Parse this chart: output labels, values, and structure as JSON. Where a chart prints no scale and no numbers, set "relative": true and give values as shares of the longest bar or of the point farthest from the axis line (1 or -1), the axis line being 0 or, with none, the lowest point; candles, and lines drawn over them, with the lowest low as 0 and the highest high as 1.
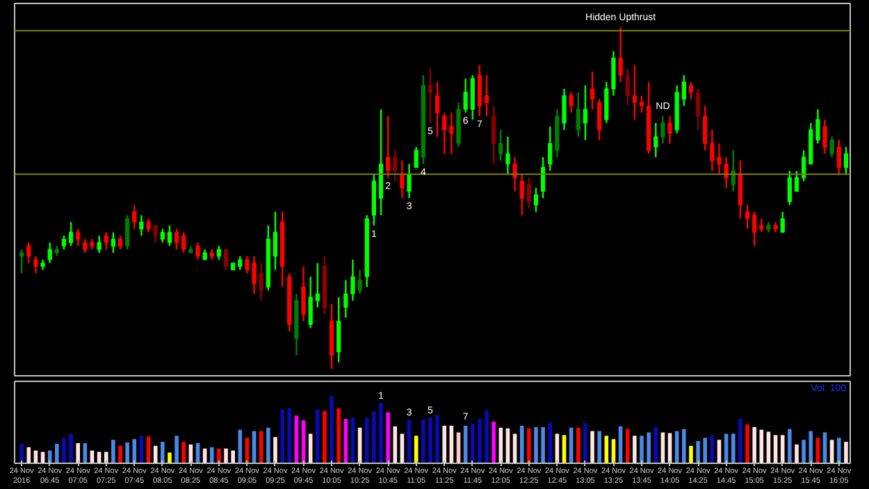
{
  "chart_data": [
    {
      "type": "candlestick",
      "relative": true,
      "tick_labels": false,
      "grid": false,
      "x": [
        "2016-11-24T06:25",
        "2016-11-24T06:30",
        "2016-11-24T06:35",
        "2016-11-24T06:40",
        "2016-11-24T06:45",
        "2016-11-24T06:50",
        "2016-11-24T06:55",
        "2016-11-24T07:00",
        "2016-11-24T07:05",
        "2016-11-24T07:10",
        "2016-11-24T07:15",
        "2016-11-24T07:20",
        "2016-11-24T07:25",
        "2016-11-24T07:30",
        "2016-11-24T07:35",
        "2016-11-24T07:40",
        "2016-11-24T07:45",
        "2016-11-24T07:50",
        "2016-11-24T07:55",
        "2016-11-24T08:00",
        "2016-11-24T08:05",
        "2016-11-24T08:10",
        "2016-11-24T08:15",
        "2016-11-24T08:20",
        "2016-11-24T08:25",
        "2016-11-24T08:30",
        "2016-11-24T08:35",
        "2016-11-24T08:40",
        "2016-11-24T08:45",
        "2016-11-24T08:50",
        "2016-11-24T08:55",
        "2016-11-24T09:00",
        "2016-11-24T09:05",
        "2016-11-24T09:10",
        "2016-11-24T09:15",
        "2016-11-24T09:20",
        "2016-11-24T09:25",
        "2016-11-24T09:30",
        "2016-11-24T09:35",
        "2016-11-24T09:40",
        "2016-11-24T09:45",
        "2016-11-24T09:50",
        "2016-11-24T09:55",
        "2016-11-24T10:00",
        "2016-11-24T10:05",
        "2016-11-24T10:10",
        "2016-11-24T10:15",
        "2016-11-24T10:20",
        "2016-11-24T10:25",
        "2016-11-24T10:30",
        "2016-11-24T10:35",
        "2016-11-24T10:40",
        "2016-11-24T10:45",
        "2016-11-24T10:50",
        "2016-11-24T10:55",
        "2016-11-24T11:00",
        "2016-11-24T11:05",
        "2016-11-24T11:10",
        "2016-11-24T11:15",
        "2016-11-24T11:20",
        "2016-11-24T11:25",
        "2016-11-24T11:30",
        "2016-11-24T11:35",
        "2016-11-24T11:40",
        "2016-11-24T11:45",
        "2016-11-24T11:50",
        "2016-11-24T11:55",
        "2016-11-24T12:00",
        "2016-11-24T12:05",
        "2016-11-24T12:10",
        "2016-11-24T12:15",
        "2016-11-24T12:20",
        "2016-11-24T12:25",
        "2016-11-24T12:30",
        "2016-11-24T12:35",
        "2016-11-24T12:40",
        "2016-11-24T12:45",
        "2016-11-24T12:50",
        "2016-11-24T12:55",
        "2016-11-24T13:00",
        "2016-11-24T13:05",
        "2016-11-24T13:10",
        "2016-11-24T13:15",
        "2016-11-24T13:20",
        "2016-11-24T13:25",
        "2016-11-24T13:30",
        "2016-11-24T13:35",
        "2016-11-24T13:40",
        "2016-11-24T13:45",
        "2016-11-24T13:50",
        "2016-11-24T13:55",
        "2016-11-24T14:00",
        "2016-11-24T14:05",
        "2016-11-24T14:10",
        "2016-11-24T14:15",
        "2016-11-24T14:20",
        "2016-11-24T14:25",
        "2016-11-24T14:30",
        "2016-11-24T14:35",
        "2016-11-24T14:40",
        "2016-11-24T14:45",
        "2016-11-24T14:50",
        "2016-11-24T14:55",
        "2016-11-24T15:00",
        "2016-11-24T15:05",
        "2016-11-24T15:10",
        "2016-11-24T15:15",
        "2016-11-24T15:20",
        "2016-11-24T15:25",
        "2016-11-24T15:30",
        "2016-11-24T15:35",
        "2016-11-24T15:40",
        "2016-11-24T15:45",
        "2016-11-24T15:50",
        "2016-11-24T15:55",
        "2016-11-24T16:00",
        "2016-11-24T16:05",
        "2016-11-24T16:10"
      ],
      "xlim": [
        "2016-11-24T06:20",
        "2016-11-24T16:13"
      ],
      "ohlc": [
        [
          0.33,
          0.35,
          0.28,
          0.34
        ],
        [
          0.36,
          0.37,
          0.31,
          0.33
        ],
        [
          0.32,
          0.33,
          0.28,
          0.3
        ],
        [
          0.3,
          0.32,
          0.29,
          0.31
        ],
        [
          0.32,
          0.37,
          0.31,
          0.35
        ],
        [
          0.34,
          0.36,
          0.33,
          0.35
        ],
        [
          0.36,
          0.39,
          0.35,
          0.38
        ],
        [
          0.37,
          0.43,
          0.36,
          0.4
        ],
        [
          0.4,
          0.41,
          0.36,
          0.38
        ],
        [
          0.37,
          0.38,
          0.34,
          0.35
        ],
        [
          0.37,
          0.38,
          0.35,
          0.36
        ],
        [
          0.35,
          0.39,
          0.34,
          0.37
        ],
        [
          0.39,
          0.4,
          0.35,
          0.37
        ],
        [
          0.36,
          0.4,
          0.34,
          0.38
        ],
        [
          0.38,
          0.39,
          0.35,
          0.36
        ],
        [
          0.36,
          0.45,
          0.35,
          0.44
        ],
        [
          0.46,
          0.48,
          0.41,
          0.43
        ],
        [
          0.41,
          0.45,
          0.39,
          0.43
        ],
        [
          0.43,
          0.44,
          0.4,
          0.41
        ],
        [
          0.42,
          0.42,
          0.37,
          0.39
        ],
        [
          0.38,
          0.41,
          0.37,
          0.4
        ],
        [
          0.37,
          0.42,
          0.36,
          0.4
        ],
        [
          0.4,
          0.41,
          0.35,
          0.37
        ],
        [
          0.39,
          0.4,
          0.34,
          0.35
        ],
        [
          0.34,
          0.36,
          0.34,
          0.35
        ],
        [
          0.36,
          0.37,
          0.32,
          0.33
        ],
        [
          0.32,
          0.35,
          0.32,
          0.34
        ],
        [
          0.34,
          0.35,
          0.32,
          0.33
        ],
        [
          0.33,
          0.36,
          0.32,
          0.35
        ],
        [
          0.35,
          0.35,
          0.29,
          0.3
        ],
        [
          0.29,
          0.31,
          0.29,
          0.31
        ],
        [
          0.3,
          0.33,
          0.29,
          0.32
        ],
        [
          0.32,
          0.33,
          0.28,
          0.29
        ],
        [
          0.31,
          0.33,
          0.22,
          0.25
        ],
        [
          0.28,
          0.31,
          0.2,
          0.23
        ],
        [
          0.24,
          0.42,
          0.23,
          0.38
        ],
        [
          0.33,
          0.46,
          0.29,
          0.4
        ],
        [
          0.43,
          0.46,
          0.24,
          0.3
        ],
        [
          0.27,
          0.28,
          0.11,
          0.13
        ],
        [
          0.09,
          0.22,
          0.04,
          0.2
        ],
        [
          0.24,
          0.3,
          0.14,
          0.16
        ],
        [
          0.13,
          0.27,
          0.12,
          0.21
        ],
        [
          0.2,
          0.31,
          0.18,
          0.22
        ],
        [
          0.3,
          0.33,
          0.16,
          0.18
        ],
        [
          0.14,
          0.19,
          0.0,
          0.04
        ],
        [
          0.05,
          0.21,
          0.02,
          0.14
        ],
        [
          0.18,
          0.26,
          0.15,
          0.22
        ],
        [
          0.22,
          0.32,
          0.2,
          0.27
        ],
        [
          0.23,
          0.29,
          0.22,
          0.26
        ],
        [
          0.27,
          0.45,
          0.24,
          0.44
        ],
        [
          0.45,
          0.57,
          0.42,
          0.55
        ],
        [
          0.5,
          0.76,
          0.45,
          0.6
        ],
        [
          0.62,
          0.74,
          0.56,
          0.58
        ],
        [
          0.62,
          0.64,
          0.55,
          0.58
        ],
        [
          0.57,
          0.61,
          0.5,
          0.53
        ],
        [
          0.52,
          0.6,
          0.5,
          0.57
        ],
        [
          0.59,
          0.65,
          0.59,
          0.64
        ],
        [
          0.62,
          0.86,
          0.6,
          0.83
        ],
        [
          0.83,
          0.88,
          0.72,
          0.81
        ],
        [
          0.8,
          0.84,
          0.68,
          0.75
        ],
        [
          0.74,
          0.75,
          0.63,
          0.7
        ],
        [
          0.71,
          0.75,
          0.63,
          0.69
        ],
        [
          0.66,
          0.78,
          0.65,
          0.76
        ],
        [
          0.76,
          0.85,
          0.75,
          0.81
        ],
        [
          0.76,
          0.86,
          0.73,
          0.85
        ],
        [
          0.86,
          0.89,
          0.74,
          0.77
        ],
        [
          0.8,
          0.86,
          0.74,
          0.78
        ],
        [
          0.74,
          0.77,
          0.6,
          0.66
        ],
        [
          0.63,
          0.7,
          0.61,
          0.66
        ],
        [
          0.6,
          0.68,
          0.57,
          0.63
        ],
        [
          0.6,
          0.62,
          0.52,
          0.56
        ],
        [
          0.55,
          0.57,
          0.45,
          0.5
        ],
        [
          0.54,
          0.56,
          0.47,
          0.49
        ],
        [
          0.48,
          0.53,
          0.46,
          0.51
        ],
        [
          0.52,
          0.62,
          0.5,
          0.59
        ],
        [
          0.6,
          0.71,
          0.58,
          0.66
        ],
        [
          0.64,
          0.76,
          0.62,
          0.74
        ],
        [
          0.72,
          0.82,
          0.7,
          0.8
        ],
        [
          0.8,
          0.81,
          0.75,
          0.77
        ],
        [
          0.7,
          0.81,
          0.68,
          0.76
        ],
        [
          0.72,
          0.83,
          0.67,
          0.76
        ],
        [
          0.82,
          0.87,
          0.76,
          0.79
        ],
        [
          0.78,
          0.79,
          0.67,
          0.7
        ],
        [
          0.73,
          0.84,
          0.72,
          0.82
        ],
        [
          0.82,
          0.93,
          0.8,
          0.91
        ],
        [
          0.91,
          1.0,
          0.84,
          0.86
        ],
        [
          0.86,
          0.88,
          0.77,
          0.8
        ],
        [
          0.8,
          0.89,
          0.73,
          0.78
        ],
        [
          0.78,
          0.8,
          0.75,
          0.77
        ],
        [
          0.77,
          0.84,
          0.63,
          0.64
        ],
        [
          0.65,
          0.72,
          0.62,
          0.68
        ],
        [
          0.68,
          0.74,
          0.66,
          0.72
        ],
        [
          0.72,
          0.74,
          0.66,
          0.69
        ],
        [
          0.7,
          0.83,
          0.69,
          0.81
        ],
        [
          0.79,
          0.86,
          0.77,
          0.84
        ],
        [
          0.83,
          0.84,
          0.79,
          0.81
        ],
        [
          0.81,
          0.82,
          0.7,
          0.74
        ],
        [
          0.74,
          0.77,
          0.64,
          0.66
        ],
        [
          0.66,
          0.7,
          0.58,
          0.61
        ],
        [
          0.62,
          0.66,
          0.57,
          0.6
        ],
        [
          0.6,
          0.62,
          0.53,
          0.56
        ],
        [
          0.54,
          0.64,
          0.52,
          0.58
        ],
        [
          0.57,
          0.61,
          0.44,
          0.48
        ],
        [
          0.46,
          0.48,
          0.41,
          0.44
        ],
        [
          0.45,
          0.46,
          0.36,
          0.4
        ],
        [
          0.42,
          0.44,
          0.4,
          0.41
        ],
        [
          0.41,
          0.43,
          0.4,
          0.42
        ],
        [
          0.42,
          0.43,
          0.4,
          0.41
        ],
        [
          0.4,
          0.46,
          0.4,
          0.44
        ],
        [
          0.49,
          0.58,
          0.48,
          0.56
        ],
        [
          0.52,
          0.58,
          0.52,
          0.56
        ],
        [
          0.56,
          0.64,
          0.55,
          0.62
        ],
        [
          0.6,
          0.72,
          0.6,
          0.7
        ],
        [
          0.67,
          0.76,
          0.66,
          0.73
        ],
        [
          0.71,
          0.73,
          0.63,
          0.65
        ],
        [
          0.63,
          0.68,
          0.62,
          0.67
        ],
        [
          0.65,
          0.67,
          0.57,
          0.59
        ],
        [
          0.59,
          0.65,
          0.57,
          0.63
        ]
      ],
      "colors": [
        "#007f00",
        "#ff0000",
        "#ff0000",
        "#00ff00",
        "#00ff00",
        "#007f00",
        "#00ff00",
        "#00ff00",
        "#ff0000",
        "#ff0000",
        "#ff0000",
        "#00ff00",
        "#ff0000",
        "#00ff00",
        "#ff0000",
        "#007f00",
        "#ff0000",
        "#00ff00",
        "#ff0000",
        "#8b0000",
        "#00ff00",
        "#00ff00",
        "#ff0000",
        "#ff0000",
        "#007f00",
        "#ff0000",
        "#00ff00",
        "#ff0000",
        "#00ff00",
        "#8b0000",
        "#00ff00",
        "#00ff00",
        "#ff0000",
        "#ff0000",
        "#8b0000",
        "#00ff00",
        "#00ff00",
        "#ff0000",
        "#ff0000",
        "#007f00",
        "#ff0000",
        "#00ff00",
        "#00ff00",
        "#8b0000",
        "#ff0000",
        "#00ff00",
        "#00ff00",
        "#00ff00",
        "#007f00",
        "#00ff00",
        "#00ff00",
        "#00ff00",
        "#ff0000",
        "#8b0000",
        "#ff0000",
        "#00ff00",
        "#00ff00",
        "#007f00",
        "#8b0000",
        "#ff0000",
        "#ff0000",
        "#ff0000",
        "#007f00",
        "#00ff00",
        "#00ff00",
        "#ff0000",
        "#ff0000",
        "#8b0000",
        "#007f00",
        "#00ff00",
        "#ff0000",
        "#ff0000",
        "#8b0000",
        "#00ff00",
        "#00ff00",
        "#00ff00",
        "#007f00",
        "#00ff00",
        "#ff0000",
        "#007f00",
        "#00ff00",
        "#ff0000",
        "#ff0000",
        "#00ff00",
        "#00ff00",
        "#ff0000",
        "#8b0000",
        "#ff0000",
        "#ff0000",
        "#ff0000",
        "#00ff00",
        "#007f00",
        "#ff0000",
        "#00ff00",
        "#00ff00",
        "#ff0000",
        "#8b0000",
        "#ff0000",
        "#ff0000",
        "#ff0000",
        "#ff0000",
        "#007f00",
        "#ff0000",
        "#ff0000",
        "#ff0000",
        "#ff0000",
        "#007f00",
        "#ff0000",
        "#00ff00",
        "#00ff00",
        "#00ff00",
        "#00ff00",
        "#00ff00",
        "#00ff00",
        "#ff0000",
        "#007f00",
        "#ff0000",
        "#00ff00"
      ],
      "ref_lines": [
        {
          "axis": "y",
          "value": 0.99,
          "color": "#808000"
        },
        {
          "axis": "y",
          "value": 0.57,
          "color": "#808000"
        }
      ],
      "annotations": [
        {
          "text": "Hidden Upthrust",
          "x": "2016-11-24T13:30",
          "y": 1.0
        },
        {
          "text": "ND",
          "x": "2016-11-24T14:00",
          "y": 0.74
        },
        {
          "text": "1",
          "x": "2016-11-24T10:35",
          "y": 0.42
        },
        {
          "text": "2",
          "x": "2016-11-24T10:45",
          "y": 0.56
        },
        {
          "text": "3",
          "x": "2016-11-24T11:00",
          "y": 0.5
        },
        {
          "text": "4",
          "x": "2016-11-24T11:10",
          "y": 0.6
        },
        {
          "text": "5",
          "x": "2016-11-24T11:15",
          "y": 0.72
        },
        {
          "text": "6",
          "x": "2016-11-24T11:40",
          "y": 0.75
        },
        {
          "text": "7",
          "x": "2016-11-24T11:50",
          "y": 0.74
        }
      ]
    },
    {
      "type": "bar",
      "relative": true,
      "grid": false,
      "tick_labels": "x",
      "x": [
        "2016-11-24T06:25",
        "2016-11-24T06:30",
        "2016-11-24T06:35",
        "2016-11-24T06:40",
        "2016-11-24T06:45",
        "2016-11-24T06:50",
        "2016-11-24T06:55",
        "2016-11-24T07:00",
        "2016-11-24T07:05",
        "2016-11-24T07:10",
        "2016-11-24T07:15",
        "2016-11-24T07:20",
        "2016-11-24T07:25",
        "2016-11-24T07:30",
        "2016-11-24T07:35",
        "2016-11-24T07:40",
        "2016-11-24T07:45",
        "2016-11-24T07:50",
        "2016-11-24T07:55",
        "2016-11-24T08:00",
        "2016-11-24T08:05",
        "2016-11-24T08:10",
        "2016-11-24T08:15",
        "2016-11-24T08:20",
        "2016-11-24T08:25",
        "2016-11-24T08:30",
        "2016-11-24T08:35",
        "2016-11-24T08:40",
        "2016-11-24T08:45",
        "2016-11-24T08:50",
        "2016-11-24T08:55",
        "2016-11-24T09:00",
        "2016-11-24T09:05",
        "2016-11-24T09:10",
        "2016-11-24T09:15",
        "2016-11-24T09:20",
        "2016-11-24T09:25",
        "2016-11-24T09:30",
        "2016-11-24T09:35",
        "2016-11-24T09:40",
        "2016-11-24T09:45",
        "2016-11-24T09:50",
        "2016-11-24T09:55",
        "2016-11-24T10:00",
        "2016-11-24T10:05",
        "2016-11-24T10:10",
        "2016-11-24T10:15",
        "2016-11-24T10:20",
        "2016-11-24T10:25",
        "2016-11-24T10:30",
        "2016-11-24T10:35",
        "2016-11-24T10:40",
        "2016-11-24T10:45",
        "2016-11-24T10:50",
        "2016-11-24T10:55",
        "2016-11-24T11:00",
        "2016-11-24T11:05",
        "2016-11-24T11:10",
        "2016-11-24T11:15",
        "2016-11-24T11:20",
        "2016-11-24T11:25",
        "2016-11-24T11:30",
        "2016-11-24T11:35",
        "2016-11-24T11:40",
        "2016-11-24T11:45",
        "2016-11-24T11:50",
        "2016-11-24T11:55",
        "2016-11-24T12:00",
        "2016-11-24T12:05",
        "2016-11-24T12:10",
        "2016-11-24T12:15",
        "2016-11-24T12:20",
        "2016-11-24T12:25",
        "2016-11-24T12:30",
        "2016-11-24T12:35",
        "2016-11-24T12:40",
        "2016-11-24T12:45",
        "2016-11-24T12:50",
        "2016-11-24T12:55",
        "2016-11-24T13:00",
        "2016-11-24T13:05",
        "2016-11-24T13:10",
        "2016-11-24T13:15",
        "2016-11-24T13:20",
        "2016-11-24T13:25",
        "2016-11-24T13:30",
        "2016-11-24T13:35",
        "2016-11-24T13:40",
        "2016-11-24T13:45",
        "2016-11-24T13:50",
        "2016-11-24T13:55",
        "2016-11-24T14:00",
        "2016-11-24T14:05",
        "2016-11-24T14:10",
        "2016-11-24T14:15",
        "2016-11-24T14:20",
        "2016-11-24T14:25",
        "2016-11-24T14:30",
        "2016-11-24T14:35",
        "2016-11-24T14:40",
        "2016-11-24T14:45",
        "2016-11-24T14:50",
        "2016-11-24T14:55",
        "2016-11-24T15:00",
        "2016-11-24T15:05",
        "2016-11-24T15:10",
        "2016-11-24T15:15",
        "2016-11-24T15:20",
        "2016-11-24T15:25",
        "2016-11-24T15:30",
        "2016-11-24T15:35",
        "2016-11-24T15:40",
        "2016-11-24T15:45",
        "2016-11-24T15:50",
        "2016-11-24T15:55",
        "2016-11-24T16:00",
        "2016-11-24T16:05",
        "2016-11-24T16:10"
      ],
      "xlim": [
        "2016-11-24T06:20",
        "2016-11-24T16:13"
      ],
      "xticks": [
        {
          "value": "2016-11-24T06:25",
          "label": "24 Nov 2016"
        },
        {
          "value": "2016-11-24T06:45",
          "label": "24 Nov 06:45"
        },
        {
          "value": "2016-11-24T07:05",
          "label": "24 Nov 07:05"
        },
        {
          "value": "2016-11-24T07:25",
          "label": "24 Nov 07:25"
        },
        {
          "value": "2016-11-24T07:45",
          "label": "24 Nov 07:45"
        },
        {
          "value": "2016-11-24T08:05",
          "label": "24 Nov 08:05"
        },
        {
          "value": "2016-11-24T08:25",
          "label": "24 Nov 08:25"
        },
        {
          "value": "2016-11-24T08:45",
          "label": "24 Nov 08:45"
        },
        {
          "value": "2016-11-24T09:05",
          "label": "24 Nov 09:05"
        },
        {
          "value": "2016-11-24T09:25",
          "label": "24 Nov 09:25"
        },
        {
          "value": "2016-11-24T09:45",
          "label": "24 Nov 09:45"
        },
        {
          "value": "2016-11-24T10:05",
          "label": "24 Nov 10:05"
        },
        {
          "value": "2016-11-24T10:25",
          "label": "24 Nov 10:25"
        },
        {
          "value": "2016-11-24T10:45",
          "label": "24 Nov 10:45"
        },
        {
          "value": "2016-11-24T11:05",
          "label": "24 Nov 11:05"
        },
        {
          "value": "2016-11-24T11:25",
          "label": "24 Nov 11:25"
        },
        {
          "value": "2016-11-24T11:45",
          "label": "24 Nov 11:45"
        },
        {
          "value": "2016-11-24T12:05",
          "label": "24 Nov 12:05"
        },
        {
          "value": "2016-11-24T12:25",
          "label": "24 Nov 12:25"
        },
        {
          "value": "2016-11-24T12:45",
          "label": "24 Nov 12:45"
        },
        {
          "value": "2016-11-24T13:05",
          "label": "24 Nov 13:05"
        },
        {
          "value": "2016-11-24T13:25",
          "label": "24 Nov 13:25"
        },
        {
          "value": "2016-11-24T13:45",
          "label": "24 Nov 13:45"
        },
        {
          "value": "2016-11-24T14:05",
          "label": "24 Nov 14:05"
        },
        {
          "value": "2016-11-24T14:25",
          "label": "24 Nov 14:25"
        },
        {
          "value": "2016-11-24T14:45",
          "label": "24 Nov 14:45"
        },
        {
          "value": "2016-11-24T15:05",
          "label": "24 Nov 15:05"
        },
        {
          "value": "2016-11-24T15:25",
          "label": "24 Nov 15:25"
        },
        {
          "value": "2016-11-24T15:45",
          "label": "24 Nov 15:45"
        },
        {
          "value": "2016-11-24T16:05",
          "label": "24 Nov 16:05"
        }
      ],
      "values": [
        0.29,
        0.24,
        0.19,
        0.17,
        0.19,
        0.29,
        0.37,
        0.44,
        0.3,
        0.3,
        0.19,
        0.17,
        0.17,
        0.35,
        0.26,
        0.31,
        0.36,
        0.41,
        0.4,
        0.26,
        0.32,
        0.16,
        0.41,
        0.32,
        0.28,
        0.3,
        0.22,
        0.24,
        0.22,
        0.22,
        0.19,
        0.5,
        0.38,
        0.48,
        0.48,
        0.53,
        0.39,
        0.8,
        0.82,
        0.71,
        0.64,
        0.44,
        0.8,
        0.78,
        1.0,
        0.82,
        0.66,
        0.68,
        0.53,
        0.68,
        0.77,
        0.9,
        0.76,
        0.55,
        0.44,
        0.65,
        0.41,
        0.65,
        0.68,
        0.72,
        0.56,
        0.56,
        0.46,
        0.56,
        0.59,
        0.66,
        0.79,
        0.62,
        0.53,
        0.52,
        0.44,
        0.56,
        0.52,
        0.54,
        0.54,
        0.6,
        0.44,
        0.42,
        0.53,
        0.53,
        0.6,
        0.48,
        0.48,
        0.41,
        0.36,
        0.55,
        0.51,
        0.41,
        0.41,
        0.46,
        0.54,
        0.46,
        0.45,
        0.48,
        0.51,
        0.26,
        0.33,
        0.38,
        0.42,
        0.35,
        0.44,
        0.44,
        0.66,
        0.58,
        0.54,
        0.5,
        0.47,
        0.42,
        0.42,
        0.51,
        0.28,
        0.35,
        0.48,
        0.38,
        0.46,
        0.35,
        0.38,
        0.32
      ],
      "colors": [
        "#0a0ab4",
        "#ffe4e4",
        "#ffe4e4",
        "#ffe4e4",
        "#4a8ae6",
        "#4a8ae6",
        "#0a0ab4",
        "#0a0ab4",
        "#ffe4e4",
        "#4a8ae6",
        "#ffe4e4",
        "#ffe4e4",
        "#ffe4e4",
        "#4a8ae6",
        "#ff0000",
        "#4a8ae6",
        "#4a8ae6",
        "#0a0ab4",
        "#ff0000",
        "#ffe4e4",
        "#4a8ae6",
        "#ffff00",
        "#4a8ae6",
        "#ff0000",
        "#ffe4e4",
        "#4a8ae6",
        "#ffe4e4",
        "#4a8ae6",
        "#ff0000",
        "#ffe4e4",
        "#ffe4e4",
        "#4a8ae6",
        "#ff0000",
        "#4a8ae6",
        "#ff0000",
        "#4a8ae6",
        "#ffe4e4",
        "#0a0ab4",
        "#0a0ab4",
        "#ff00ff",
        "#ff00ff",
        "#ffe4e4",
        "#0a0ab4",
        "#ff0000",
        "#0a0ab4",
        "#ff0000",
        "#ff00ff",
        "#0a0ab4",
        "#ffe4e4",
        "#0a0ab4",
        "#0a0ab4",
        "#0a0ab4",
        "#ff00ff",
        "#ffe4e4",
        "#ffe4e4",
        "#0a0ab4",
        "#ffff00",
        "#0a0ab4",
        "#0a0ab4",
        "#0a0ab4",
        "#ffe4e4",
        "#ffe4e4",
        "#ffc8c8",
        "#4a8ae6",
        "#0a0ab4",
        "#0a0ab4",
        "#0a0ab4",
        "#ff00ff",
        "#ffe4e4",
        "#ffe4e4",
        "#ffe4e4",
        "#4a8ae6",
        "#ff0000",
        "#4a8ae6",
        "#4a8ae6",
        "#0a0ab4",
        "#ffe4e4",
        "#ffff00",
        "#4a8ae6",
        "#ff0000",
        "#0a0ab4",
        "#ffe4e4",
        "#4a8ae6",
        "#ffff00",
        "#ffff00",
        "#4a8ae6",
        "#ff0000",
        "#ffe4e4",
        "#4a8ae6",
        "#4a8ae6",
        "#0a0ab4",
        "#ffe4e4",
        "#ffe4e4",
        "#4a8ae6",
        "#4a8ae6",
        "#ffff00",
        "#4a8ae6",
        "#4a8ae6",
        "#0a0ab4",
        "#ffe4e4",
        "#4a8ae6",
        "#4a8ae6",
        "#0a0ab4",
        "#ff0000",
        "#ffe4e4",
        "#ffe4e4",
        "#ffe4e4",
        "#ffe4e4",
        "#ffe4e4",
        "#4a8ae6",
        "#ffe4e4",
        "#4a8ae6",
        "#4a8ae6",
        "#ff0000",
        "#4a8ae6",
        "#ffe4e4",
        "#4a8ae6",
        "#ffe4e4"
      ],
      "annotations": [
        "Vol: 100",
        {
          "text": "1",
          "x": "2016-11-24T10:40",
          "y": 0.9
        },
        {
          "text": "3",
          "x": "2016-11-24T11:00",
          "y": 0.65
        },
        {
          "text": "5",
          "x": "2016-11-24T11:15",
          "y": 0.68
        },
        {
          "text": "7",
          "x": "2016-11-24T11:40",
          "y": 0.59
        }
      ]
    }
  ]
}
